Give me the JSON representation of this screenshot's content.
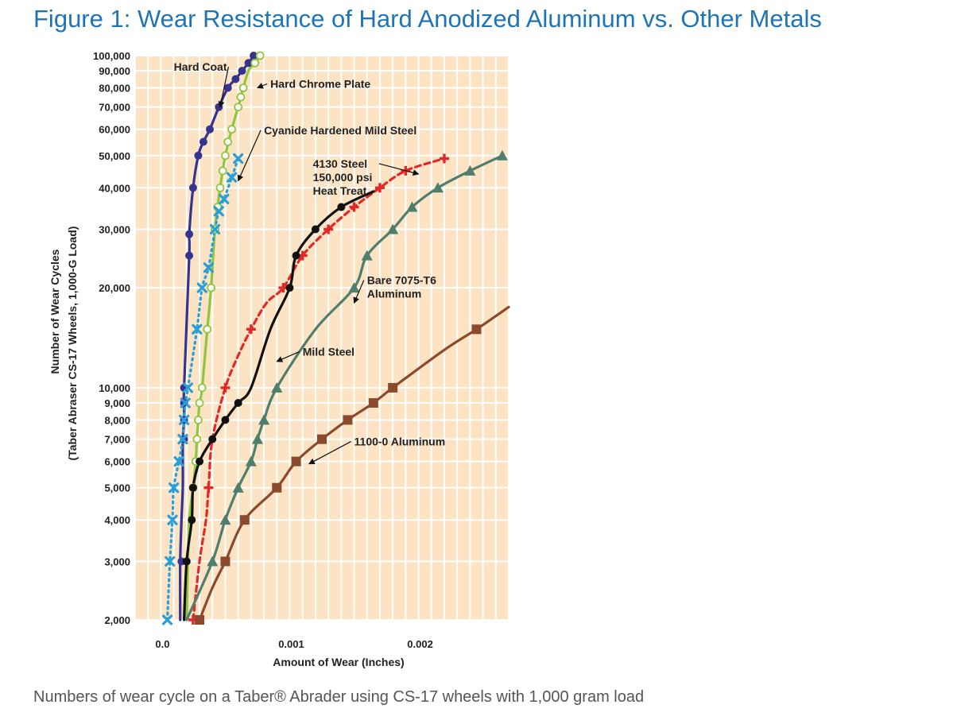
{
  "title": "Figure 1: Wear Resistance of Hard Anodized Aluminum vs. Other Metals",
  "caption": "Numbers of wear cycle on a Taber® Abrader using CS-17 wheels with 1,000 gram load",
  "chart_data": {
    "type": "line",
    "title": "",
    "xlabel": "Amount of Wear (Inches)",
    "ylabel_lines": [
      "Number of Wear Cycles",
      "(Taber Abraser CS-17 Wheels, 1,000-G Load)"
    ],
    "xlim": [
      -0.0002,
      0.0027
    ],
    "ylim": [
      2000,
      100000
    ],
    "yscale": "log",
    "grid": true,
    "x_ticks": [
      {
        "value": 0.0,
        "label": "0.0"
      },
      {
        "value": 0.001,
        "label": "0.001"
      },
      {
        "value": 0.002,
        "label": "0.002"
      }
    ],
    "y_ticks": [
      {
        "value": 2000,
        "label": "2,000"
      },
      {
        "value": 3000,
        "label": "3,000"
      },
      {
        "value": 4000,
        "label": "4,000"
      },
      {
        "value": 5000,
        "label": "5,000"
      },
      {
        "value": 6000,
        "label": "6,000"
      },
      {
        "value": 7000,
        "label": "7,000"
      },
      {
        "value": 8000,
        "label": "8,000"
      },
      {
        "value": 9000,
        "label": "9,000"
      },
      {
        "value": 10000,
        "label": "10,000"
      },
      {
        "value": 20000,
        "label": "20,000"
      },
      {
        "value": 30000,
        "label": "30,000"
      },
      {
        "value": 40000,
        "label": "40,000"
      },
      {
        "value": 50000,
        "label": "50,000"
      },
      {
        "value": 60000,
        "label": "60,000"
      },
      {
        "value": 70000,
        "label": "70,000"
      },
      {
        "value": 80000,
        "label": "80,000"
      },
      {
        "value": 90000,
        "label": "90,000"
      },
      {
        "value": 100000,
        "label": "100,000"
      }
    ],
    "series": [
      {
        "name": "Hard Coat",
        "color": "#35338f",
        "marker": "circle",
        "dash": "none",
        "points": [
          [
            0.00015,
            2000
          ],
          [
            0.00015,
            3000
          ],
          [
            0.00016,
            4000
          ],
          [
            0.00017,
            5000
          ],
          [
            0.00017,
            6000
          ],
          [
            0.00017,
            7000
          ],
          [
            0.00018,
            8000
          ],
          [
            0.00018,
            9000
          ],
          [
            0.00018,
            10000
          ],
          [
            0.00022,
            25000
          ],
          [
            0.00022,
            29000
          ],
          [
            0.00025,
            40000
          ],
          [
            0.00029,
            50000
          ],
          [
            0.00033,
            55000
          ],
          [
            0.00038,
            60000
          ],
          [
            0.00045,
            70000
          ],
          [
            0.00052,
            80000
          ],
          [
            0.00058,
            85000
          ],
          [
            0.00063,
            90000
          ],
          [
            0.00068,
            95000
          ],
          [
            0.00072,
            100000
          ]
        ],
        "markers": [
          [
            0.00016,
            3000
          ],
          [
            0.00018,
            7000
          ],
          [
            0.00018,
            8000
          ],
          [
            0.00018,
            9000
          ],
          [
            0.00018,
            10000
          ],
          [
            0.00022,
            25000
          ],
          [
            0.00022,
            29000
          ],
          [
            0.00025,
            40000
          ],
          [
            0.00029,
            50000
          ],
          [
            0.00033,
            55000
          ],
          [
            0.00038,
            60000
          ],
          [
            0.00045,
            70000
          ],
          [
            0.00052,
            80000
          ],
          [
            0.00058,
            85000
          ],
          [
            0.00063,
            90000
          ],
          [
            0.00068,
            95000
          ],
          [
            0.00072,
            100000
          ]
        ]
      },
      {
        "name": "Hard Chrome Plate",
        "color": "#8ec63f",
        "marker": "open-circle",
        "dash": "none",
        "points": [
          [
            0.0002,
            2000
          ],
          [
            0.00021,
            3000
          ],
          [
            0.00022,
            4000
          ],
          [
            0.00025,
            5000
          ],
          [
            0.00027,
            6000
          ],
          [
            0.00028,
            7000
          ],
          [
            0.00029,
            8000
          ],
          [
            0.0003,
            9000
          ],
          [
            0.00032,
            10000
          ],
          [
            0.00036,
            15000
          ],
          [
            0.00039,
            20000
          ],
          [
            0.00042,
            30000
          ],
          [
            0.00046,
            40000
          ],
          [
            0.0005,
            50000
          ],
          [
            0.00055,
            60000
          ],
          [
            0.0006,
            70000
          ],
          [
            0.00064,
            80000
          ],
          [
            0.00068,
            90000
          ],
          [
            0.00073,
            95000
          ],
          [
            0.00077,
            100000
          ]
        ],
        "markers": [
          [
            0.00025,
            5000
          ],
          [
            0.00027,
            6000
          ],
          [
            0.00028,
            7000
          ],
          [
            0.00029,
            8000
          ],
          [
            0.0003,
            9000
          ],
          [
            0.00032,
            10000
          ],
          [
            0.00036,
            15000
          ],
          [
            0.00039,
            20000
          ],
          [
            0.00042,
            30000
          ],
          [
            0.00044,
            35000
          ],
          [
            0.00046,
            40000
          ],
          [
            0.00048,
            45000
          ],
          [
            0.0005,
            50000
          ],
          [
            0.00052,
            55000
          ],
          [
            0.00055,
            60000
          ],
          [
            0.0006,
            70000
          ],
          [
            0.00062,
            75000
          ],
          [
            0.00064,
            80000
          ],
          [
            0.00073,
            95000
          ],
          [
            0.00077,
            100000
          ]
        ]
      },
      {
        "name": "Cyanide Hardened Mild Steel",
        "color": "#2a9fd6",
        "marker": "x",
        "dash": "dot",
        "points": [
          [
            5e-05,
            2000
          ],
          [
            7e-05,
            3000
          ],
          [
            9e-05,
            4000
          ],
          [
            0.0001,
            5000
          ],
          [
            0.00014,
            6000
          ],
          [
            0.00017,
            7000
          ],
          [
            0.00018,
            8000
          ],
          [
            0.00019,
            9000
          ],
          [
            0.00021,
            10000
          ],
          [
            0.00028,
            15000
          ],
          [
            0.00032,
            20000
          ],
          [
            0.00037,
            23000
          ],
          [
            0.00042,
            30000
          ],
          [
            0.00045,
            34000
          ],
          [
            0.00049,
            37000
          ],
          [
            0.00055,
            43000
          ],
          [
            0.0006,
            49000
          ]
        ],
        "markers": [
          [
            5e-05,
            2000
          ],
          [
            7e-05,
            3000
          ],
          [
            9e-05,
            4000
          ],
          [
            0.0001,
            5000
          ],
          [
            0.00014,
            6000
          ],
          [
            0.00017,
            7000
          ],
          [
            0.00018,
            8000
          ],
          [
            0.00019,
            9000
          ],
          [
            0.00021,
            10000
          ],
          [
            0.00028,
            15000
          ],
          [
            0.00032,
            20000
          ],
          [
            0.00037,
            23000
          ],
          [
            0.00042,
            30000
          ],
          [
            0.00045,
            34000
          ],
          [
            0.00049,
            37000
          ],
          [
            0.00055,
            43000
          ],
          [
            0.0006,
            49000
          ]
        ]
      },
      {
        "name": "4130 Steel 150,000 psi Heat Treat",
        "color": "#e02a2a",
        "marker": "plus",
        "dash": "dash",
        "points": [
          [
            0.00025,
            2000
          ],
          [
            0.0003,
            3000
          ],
          [
            0.00035,
            4000
          ],
          [
            0.00037,
            5000
          ],
          [
            0.0004,
            7000
          ],
          [
            0.0005,
            10000
          ],
          [
            0.0006,
            12500
          ],
          [
            0.0007,
            15000
          ],
          [
            0.00082,
            18000
          ],
          [
            0.00095,
            20000
          ],
          [
            0.0011,
            25000
          ],
          [
            0.0013,
            30000
          ],
          [
            0.0015,
            35000
          ],
          [
            0.0017,
            40000
          ],
          [
            0.0019,
            45000
          ],
          [
            0.0022,
            49000
          ]
        ],
        "markers": [
          [
            0.00025,
            2000
          ],
          [
            0.00037,
            5000
          ],
          [
            0.0005,
            10000
          ],
          [
            0.0007,
            15000
          ],
          [
            0.00095,
            20000
          ],
          [
            0.0011,
            25000
          ],
          [
            0.0013,
            30000
          ],
          [
            0.0015,
            35000
          ],
          [
            0.0017,
            40000
          ],
          [
            0.0019,
            45000
          ],
          [
            0.0022,
            49000
          ]
        ]
      },
      {
        "name": "Mild Steel",
        "color": "#111111",
        "marker": "circle",
        "dash": "none",
        "points": [
          [
            0.00018,
            2000
          ],
          [
            0.0002,
            3000
          ],
          [
            0.00024,
            4000
          ],
          [
            0.00025,
            5000
          ],
          [
            0.0003,
            6000
          ],
          [
            0.0004,
            7000
          ],
          [
            0.0005,
            8000
          ],
          [
            0.0006,
            9000
          ],
          [
            0.0007,
            10000
          ],
          [
            0.00085,
            15000
          ],
          [
            0.001,
            20000
          ],
          [
            0.00105,
            25000
          ],
          [
            0.0012,
            30000
          ],
          [
            0.0014,
            35000
          ],
          [
            0.00165,
            39000
          ]
        ],
        "markers": [
          [
            0.0002,
            3000
          ],
          [
            0.00024,
            4000
          ],
          [
            0.00025,
            5000
          ],
          [
            0.0003,
            6000
          ],
          [
            0.0004,
            7000
          ],
          [
            0.0005,
            8000
          ],
          [
            0.0006,
            9000
          ],
          [
            0.001,
            20000
          ],
          [
            0.00105,
            25000
          ],
          [
            0.0012,
            30000
          ],
          [
            0.0014,
            35000
          ]
        ]
      },
      {
        "name": "Bare 7075-T6 Aluminum",
        "color": "#4f7e6c",
        "marker": "triangle",
        "dash": "none",
        "points": [
          [
            0.0002,
            2000
          ],
          [
            0.0004,
            3000
          ],
          [
            0.0005,
            4000
          ],
          [
            0.0006,
            5000
          ],
          [
            0.0007,
            6000
          ],
          [
            0.00075,
            7000
          ],
          [
            0.0008,
            8000
          ],
          [
            0.0009,
            10000
          ],
          [
            0.0012,
            15000
          ],
          [
            0.0015,
            20000
          ],
          [
            0.0016,
            25000
          ],
          [
            0.0018,
            30000
          ],
          [
            0.00195,
            35000
          ],
          [
            0.00215,
            40000
          ],
          [
            0.0024,
            45000
          ],
          [
            0.00265,
            50000
          ]
        ],
        "markers": [
          [
            0.0004,
            3000
          ],
          [
            0.0005,
            4000
          ],
          [
            0.0006,
            5000
          ],
          [
            0.0007,
            6000
          ],
          [
            0.00075,
            7000
          ],
          [
            0.0008,
            8000
          ],
          [
            0.0009,
            10000
          ],
          [
            0.0015,
            20000
          ],
          [
            0.0016,
            25000
          ],
          [
            0.0018,
            30000
          ],
          [
            0.00195,
            35000
          ],
          [
            0.00215,
            40000
          ],
          [
            0.0024,
            45000
          ],
          [
            0.00265,
            50000
          ]
        ]
      },
      {
        "name": "1100-0 Aluminum",
        "color": "#8b4a2b",
        "marker": "square",
        "dash": "none",
        "points": [
          [
            0.0003,
            2000
          ],
          [
            0.0004,
            2500
          ],
          [
            0.0005,
            3000
          ],
          [
            0.00065,
            4000
          ],
          [
            0.0009,
            5000
          ],
          [
            0.00105,
            6000
          ],
          [
            0.00125,
            7000
          ],
          [
            0.00145,
            8000
          ],
          [
            0.00165,
            9000
          ],
          [
            0.0018,
            10000
          ],
          [
            0.0022,
            13000
          ],
          [
            0.00245,
            15000
          ],
          [
            0.0027,
            17500
          ]
        ],
        "markers": [
          [
            0.0003,
            2000
          ],
          [
            0.0005,
            3000
          ],
          [
            0.00065,
            4000
          ],
          [
            0.0009,
            5000
          ],
          [
            0.00105,
            6000
          ],
          [
            0.00125,
            7000
          ],
          [
            0.00145,
            8000
          ],
          [
            0.00165,
            9000
          ],
          [
            0.0018,
            10000
          ],
          [
            0.00245,
            15000
          ]
        ]
      }
    ],
    "annotations": [
      {
        "lines": [
          "Hard Coat"
        ],
        "tx": 0.0001,
        "ty": 90000,
        "ax": 0.00046,
        "ay": 70000
      },
      {
        "lines": [
          "Hard Chrome Plate"
        ],
        "tx": 0.00085,
        "ty": 80000,
        "ax": 0.00075,
        "ay": 80000
      },
      {
        "lines": [
          "Cyanide Hardened Mild Steel"
        ],
        "tx": 0.0008,
        "ty": 58000,
        "ax": 0.0006,
        "ay": 42000
      },
      {
        "lines": [
          "4130 Steel",
          "150,000 psi",
          "Heat Treat"
        ],
        "tx": 0.00118,
        "ty": 46000,
        "ax": 0.002,
        "ay": 44000
      },
      {
        "lines": [
          "Bare 7075-T6",
          "Aluminum"
        ],
        "tx": 0.0016,
        "ty": 20500,
        "ax": 0.0015,
        "ay": 18000
      },
      {
        "lines": [
          "Mild Steel"
        ],
        "tx": 0.0011,
        "ty": 12500,
        "ax": 0.0009,
        "ay": 12000
      },
      {
        "lines": [
          "1100-0 Aluminum"
        ],
        "tx": 0.0015,
        "ty": 6700,
        "ax": 0.00115,
        "ay": 5900
      }
    ]
  }
}
